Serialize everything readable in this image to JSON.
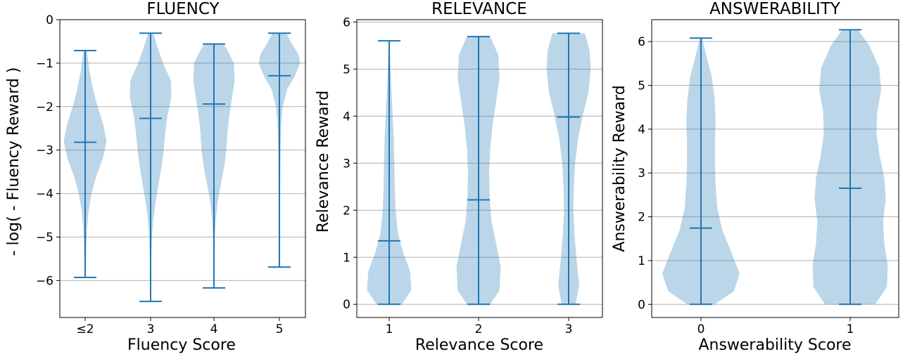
{
  "chart_data": [
    {
      "type": "violin",
      "title": "FLUENCY",
      "xlabel": "Fluency Score",
      "ylabel": "- log( - Fluency Reward )",
      "categories": [
        "≤2",
        "3",
        "4",
        "5"
      ],
      "ylim": [
        -6.85,
        0
      ],
      "yticks": [
        0,
        -1,
        -2,
        -3,
        -4,
        -5,
        -6
      ],
      "ytick_labels": [
        "0",
        "−1",
        "−2",
        "−3",
        "−4",
        "−5",
        "−6"
      ],
      "grid": true,
      "series": [
        {
          "name": "≤2",
          "min": -5.93,
          "max": -0.71,
          "mean": -2.82,
          "density": [
            [
              -5.93,
              0.02
            ],
            [
              -5.6,
              0.03
            ],
            [
              -5.2,
              0.05
            ],
            [
              -4.8,
              0.08
            ],
            [
              -4.4,
              0.15
            ],
            [
              -4.0,
              0.28
            ],
            [
              -3.6,
              0.5
            ],
            [
              -3.2,
              0.78
            ],
            [
              -2.8,
              0.95
            ],
            [
              -2.4,
              0.8
            ],
            [
              -2.0,
              0.55
            ],
            [
              -1.6,
              0.35
            ],
            [
              -1.2,
              0.2
            ],
            [
              -0.9,
              0.12
            ],
            [
              -0.71,
              0.08
            ]
          ]
        },
        {
          "name": "3",
          "min": -6.48,
          "max": -0.31,
          "mean": -2.27,
          "density": [
            [
              -6.48,
              0.01
            ],
            [
              -6.0,
              0.02
            ],
            [
              -5.5,
              0.03
            ],
            [
              -5.0,
              0.06
            ],
            [
              -4.6,
              0.12
            ],
            [
              -4.2,
              0.22
            ],
            [
              -3.8,
              0.35
            ],
            [
              -3.4,
              0.48
            ],
            [
              -3.0,
              0.58
            ],
            [
              -2.6,
              0.65
            ],
            [
              -2.2,
              0.75
            ],
            [
              -1.8,
              0.92
            ],
            [
              -1.4,
              0.9
            ],
            [
              -1.0,
              0.55
            ],
            [
              -0.6,
              0.28
            ],
            [
              -0.31,
              0.12
            ]
          ]
        },
        {
          "name": "4",
          "min": -6.17,
          "max": -0.56,
          "mean": -1.94,
          "density": [
            [
              -6.17,
              0.01
            ],
            [
              -5.6,
              0.02
            ],
            [
              -5.0,
              0.04
            ],
            [
              -4.6,
              0.08
            ],
            [
              -4.2,
              0.16
            ],
            [
              -3.8,
              0.3
            ],
            [
              -3.4,
              0.45
            ],
            [
              -3.0,
              0.55
            ],
            [
              -2.6,
              0.6
            ],
            [
              -2.2,
              0.68
            ],
            [
              -1.8,
              0.8
            ],
            [
              -1.4,
              0.92
            ],
            [
              -1.0,
              0.88
            ],
            [
              -0.7,
              0.6
            ],
            [
              -0.56,
              0.42
            ]
          ]
        },
        {
          "name": "5",
          "min": -5.69,
          "max": -0.31,
          "mean": -1.29,
          "density": [
            [
              -5.69,
              0.01
            ],
            [
              -5.0,
              0.02
            ],
            [
              -4.0,
              0.03
            ],
            [
              -3.0,
              0.05
            ],
            [
              -2.4,
              0.08
            ],
            [
              -2.0,
              0.15
            ],
            [
              -1.6,
              0.35
            ],
            [
              -1.3,
              0.68
            ],
            [
              -1.0,
              0.92
            ],
            [
              -0.8,
              0.85
            ],
            [
              -0.55,
              0.55
            ],
            [
              -0.31,
              0.3
            ]
          ]
        }
      ]
    },
    {
      "type": "violin",
      "title": "RELEVANCE",
      "xlabel": "Relevance Score",
      "ylabel": "Relevance Reward",
      "categories": [
        "1",
        "2",
        "3"
      ],
      "ylim": [
        -0.28,
        6.05
      ],
      "yticks": [
        0,
        1,
        2,
        3,
        4,
        5,
        6
      ],
      "ytick_labels": [
        "0",
        "1",
        "2",
        "3",
        "4",
        "5",
        "6"
      ],
      "grid": true,
      "series": [
        {
          "name": "1",
          "min": 0,
          "max": 5.6,
          "mean": 1.35,
          "density": [
            [
              0,
              0.55
            ],
            [
              0.3,
              0.95
            ],
            [
              0.7,
              0.9
            ],
            [
              1.1,
              0.6
            ],
            [
              1.5,
              0.38
            ],
            [
              2.0,
              0.28
            ],
            [
              2.5,
              0.24
            ],
            [
              3.0,
              0.22
            ],
            [
              3.5,
              0.2
            ],
            [
              4.0,
              0.15
            ],
            [
              4.5,
              0.1
            ],
            [
              5.0,
              0.06
            ],
            [
              5.6,
              0.02
            ]
          ]
        },
        {
          "name": "2",
          "min": 0,
          "max": 5.69,
          "mean": 2.22,
          "density": [
            [
              0,
              0.5
            ],
            [
              0.3,
              0.9
            ],
            [
              0.8,
              0.95
            ],
            [
              1.3,
              0.75
            ],
            [
              1.8,
              0.55
            ],
            [
              2.3,
              0.48
            ],
            [
              2.8,
              0.45
            ],
            [
              3.3,
              0.5
            ],
            [
              3.8,
              0.6
            ],
            [
              4.3,
              0.75
            ],
            [
              4.8,
              0.9
            ],
            [
              5.3,
              0.85
            ],
            [
              5.69,
              0.5
            ]
          ]
        },
        {
          "name": "3",
          "min": 0,
          "max": 5.76,
          "mean": 3.98,
          "density": [
            [
              0,
              0.3
            ],
            [
              0.4,
              0.45
            ],
            [
              0.9,
              0.35
            ],
            [
              1.5,
              0.25
            ],
            [
              2.0,
              0.2
            ],
            [
              2.5,
              0.22
            ],
            [
              3.0,
              0.28
            ],
            [
              3.5,
              0.4
            ],
            [
              4.0,
              0.6
            ],
            [
              4.5,
              0.85
            ],
            [
              5.0,
              0.95
            ],
            [
              5.4,
              0.9
            ],
            [
              5.76,
              0.7
            ]
          ]
        }
      ]
    },
    {
      "type": "violin",
      "title": "ANSWERABILITY",
      "xlabel": "Answerability Score",
      "ylabel": "Answerability Reward",
      "categories": [
        "0",
        "1"
      ],
      "ylim": [
        -0.3,
        6.5
      ],
      "yticks": [
        0,
        1,
        2,
        3,
        4,
        5,
        6
      ],
      "ytick_labels": [
        "0",
        "1",
        "2",
        "3",
        "4",
        "5",
        "6"
      ],
      "grid": true,
      "series": [
        {
          "name": "0",
          "min": 0,
          "max": 6.08,
          "mean": 1.74,
          "density": [
            [
              0,
              0.35
            ],
            [
              0.3,
              0.85
            ],
            [
              0.7,
              1.0
            ],
            [
              1.2,
              0.78
            ],
            [
              1.7,
              0.55
            ],
            [
              2.2,
              0.42
            ],
            [
              2.7,
              0.38
            ],
            [
              3.2,
              0.36
            ],
            [
              3.7,
              0.36
            ],
            [
              4.2,
              0.38
            ],
            [
              4.7,
              0.35
            ],
            [
              5.2,
              0.28
            ],
            [
              5.6,
              0.16
            ],
            [
              6.08,
              0.03
            ]
          ]
        },
        {
          "name": "1",
          "min": 0,
          "max": 6.27,
          "mean": 2.65,
          "density": [
            [
              0,
              0.65
            ],
            [
              0.4,
              0.95
            ],
            [
              0.9,
              0.97
            ],
            [
              1.4,
              0.88
            ],
            [
              1.9,
              0.85
            ],
            [
              2.4,
              0.92
            ],
            [
              2.9,
              0.88
            ],
            [
              3.4,
              0.76
            ],
            [
              3.9,
              0.68
            ],
            [
              4.4,
              0.7
            ],
            [
              4.9,
              0.8
            ],
            [
              5.4,
              0.75
            ],
            [
              5.9,
              0.5
            ],
            [
              6.27,
              0.2
            ]
          ]
        }
      ]
    }
  ]
}
